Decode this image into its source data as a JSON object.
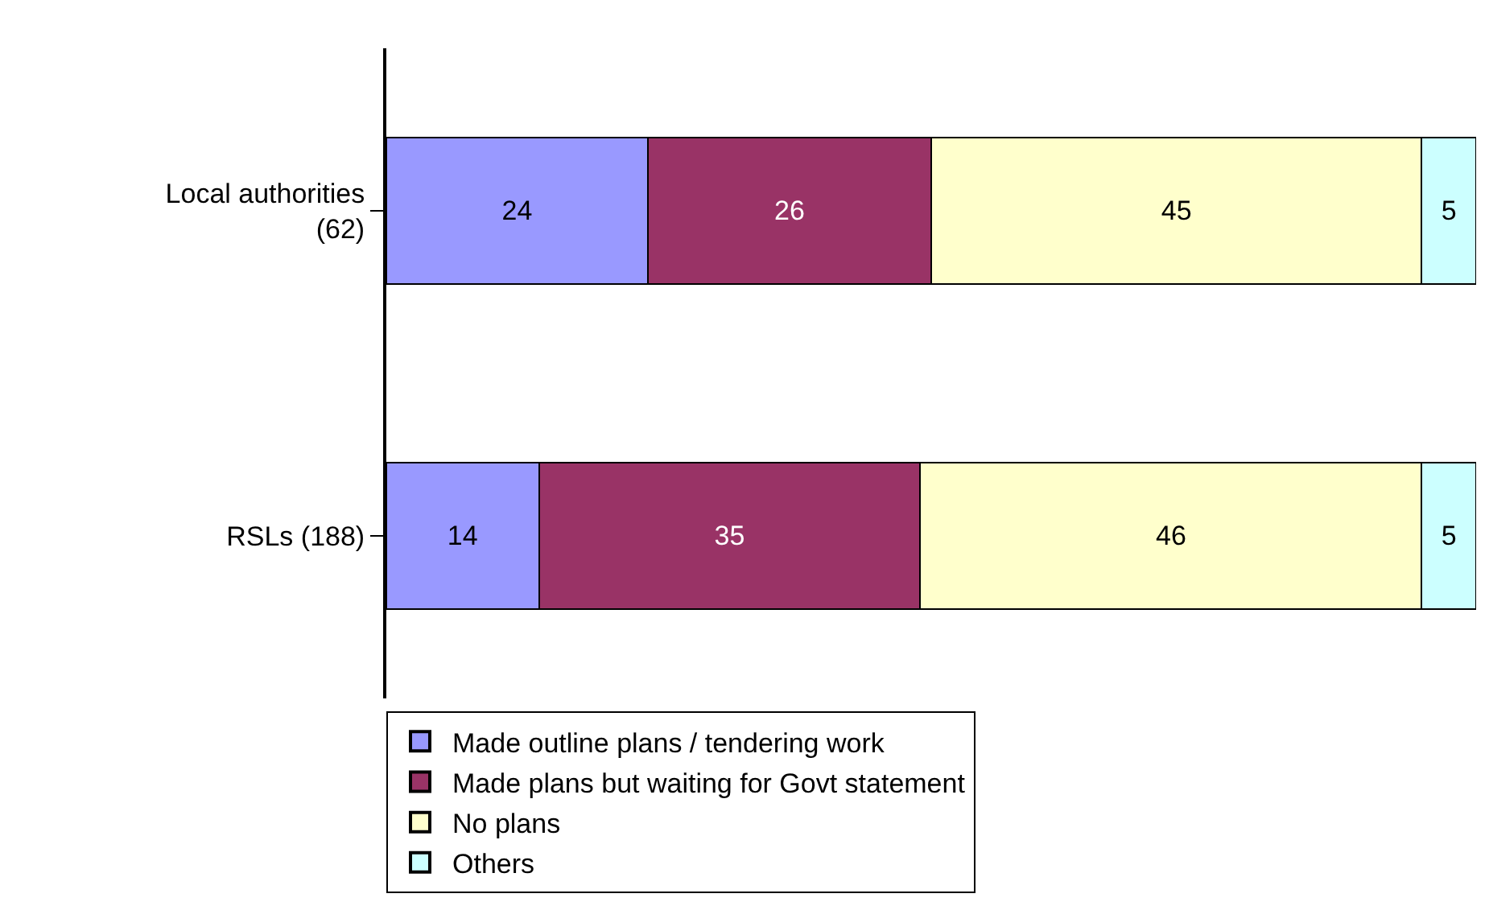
{
  "chart_data": {
    "type": "bar",
    "orientation": "horizontal",
    "stacked": true,
    "data_labels": true,
    "legend": "bottom",
    "tick_labels": "y",
    "xlim": [
      0,
      100
    ],
    "categories": [
      "Local authorities\n(62)",
      "RSLs (188)"
    ],
    "series": [
      {
        "name": "Made outline plans / tendering work",
        "color": "#9999ff",
        "values": [
          24,
          14
        ]
      },
      {
        "name": "Made plans but waiting for Govt statement",
        "color": "#993366",
        "values": [
          26,
          35
        ]
      },
      {
        "name": "No plans",
        "color": "#ffffcc",
        "values": [
          45,
          46
        ]
      },
      {
        "name": "Others",
        "color": "#ccffff",
        "values": [
          5,
          5
        ]
      }
    ]
  }
}
